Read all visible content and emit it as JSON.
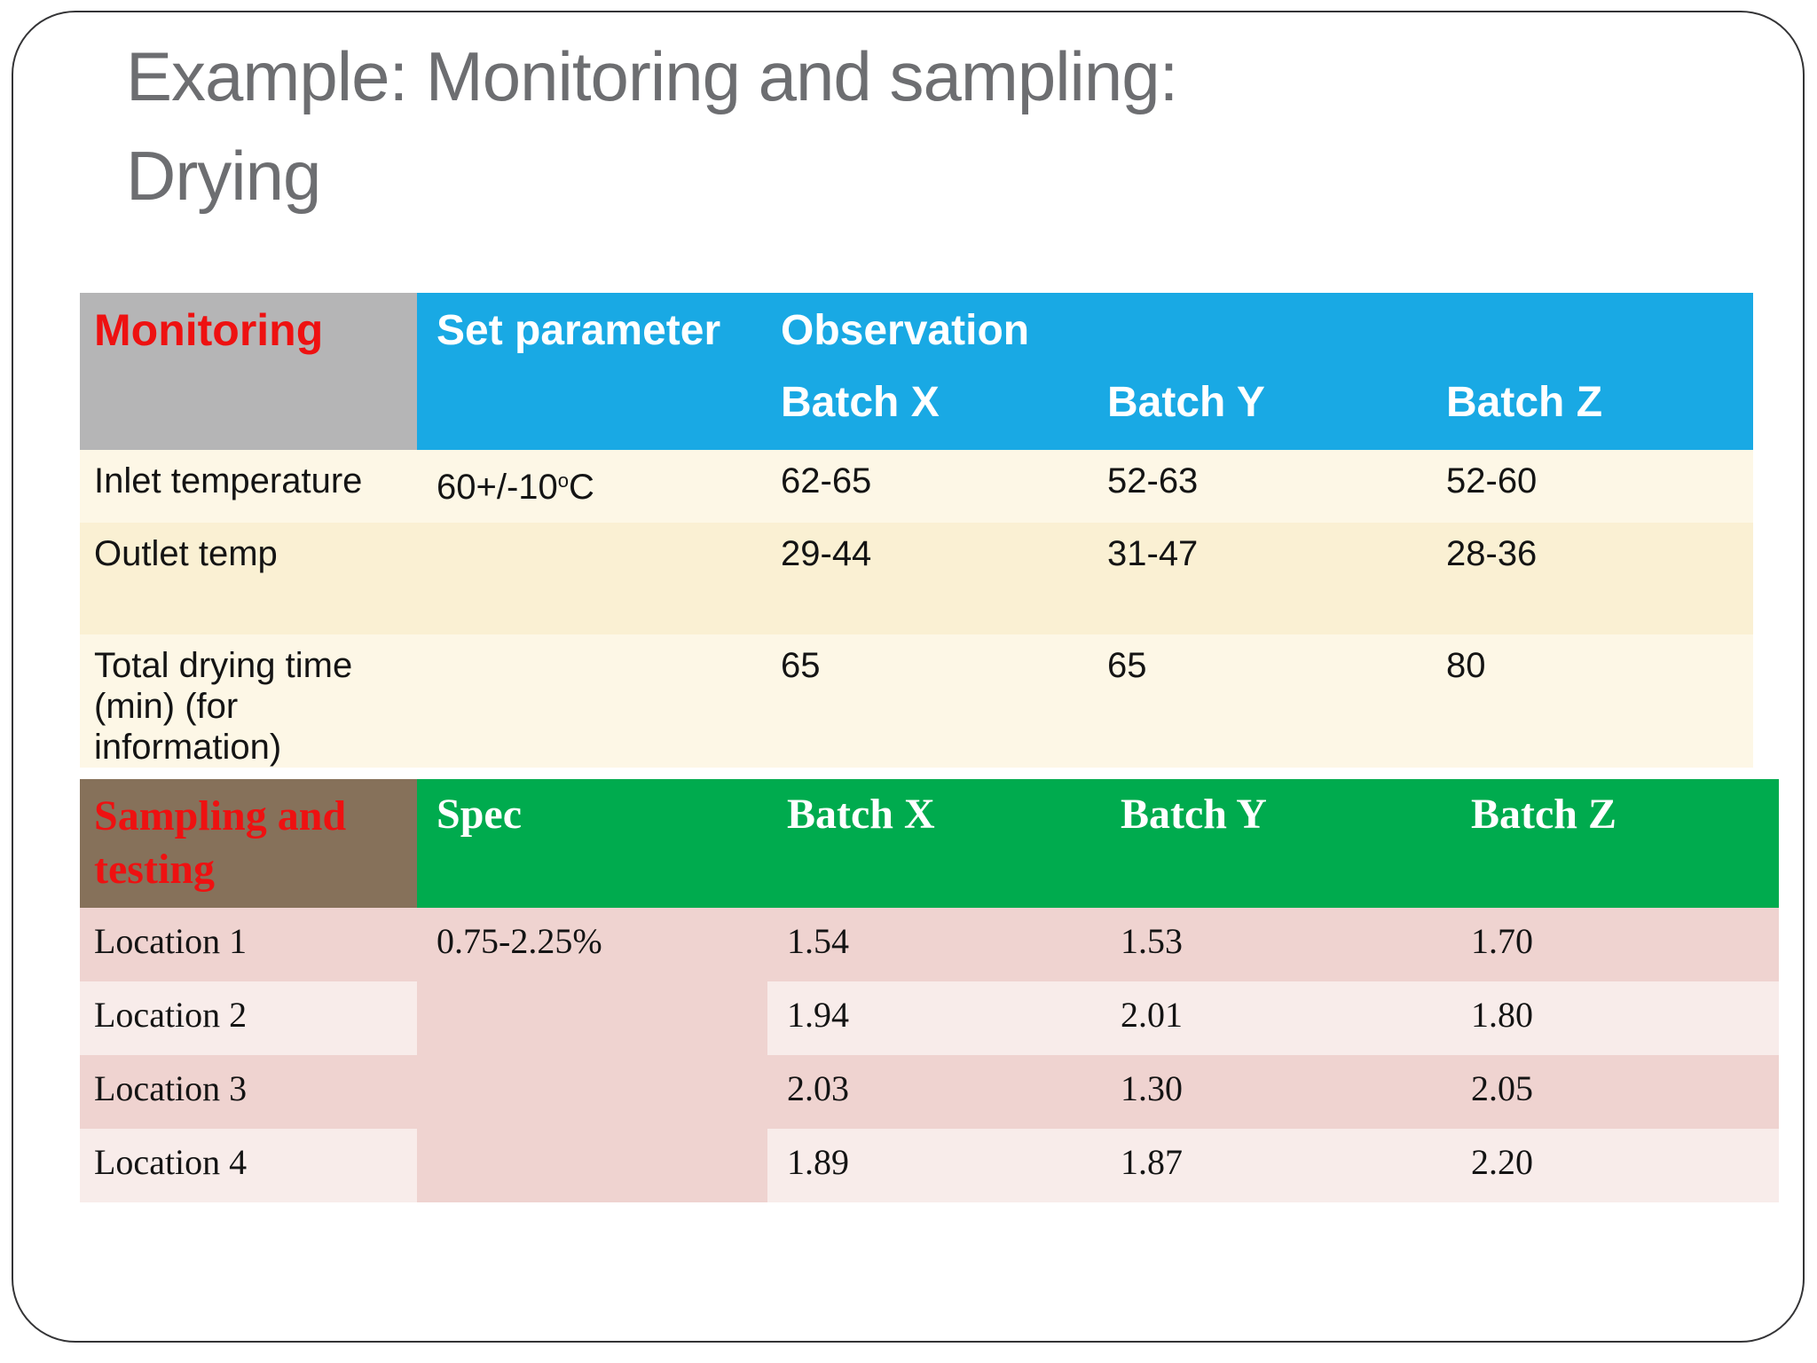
{
  "slide": {
    "title_line1": "Example: Monitoring and sampling:",
    "title_line2": "Drying"
  },
  "colors": {
    "slide-border": "#343436",
    "title-gray": "#6D6E71",
    "header-blue": "#19A9E4",
    "corner-gray": "#B5B5B6",
    "cream-light": "#FDF7E6",
    "cream-dark": "#FAF0D3",
    "header-green": "#00AB4E",
    "corner-brown": "#86715A",
    "pink-dark": "#EFD3D0",
    "pink-light": "#F8ECEA",
    "accent-red": "#EE1111",
    "body-text": "#141414"
  },
  "monitoring_table": {
    "corner_label": "Monitoring",
    "headers": {
      "set_parameter": "Set parameter",
      "observation": "Observation",
      "batches": [
        "Batch X",
        "Batch Y",
        "Batch Z"
      ]
    },
    "rows": [
      {
        "label": "Inlet temperature",
        "set_parameter": {
          "base": "60+/-10",
          "sup": "o",
          "unit": "C"
        },
        "values": [
          "62-65",
          "52-63",
          "52-60"
        ]
      },
      {
        "label": "Outlet temp",
        "values": [
          "29-44",
          "31-47",
          "28-36"
        ]
      },
      {
        "label": "Total drying time (min) (for information)",
        "values": [
          "65",
          "65",
          "80"
        ]
      }
    ]
  },
  "sampling_table": {
    "corner_label": "Sampling and testing",
    "headers": {
      "spec": "Spec",
      "batches": [
        "Batch X",
        "Batch Y",
        "Batch Z"
      ]
    },
    "spec_value": "0.75-2.25%",
    "rows": [
      {
        "label": "Location 1",
        "values": [
          "1.54",
          "1.53",
          "1.70"
        ]
      },
      {
        "label": "Location 2",
        "values": [
          "1.94",
          "2.01",
          "1.80"
        ]
      },
      {
        "label": "Location 3",
        "values": [
          "2.03",
          "1.30",
          "2.05"
        ]
      },
      {
        "label": "Location 4",
        "values": [
          "1.89",
          "1.87",
          "2.20"
        ]
      }
    ]
  }
}
